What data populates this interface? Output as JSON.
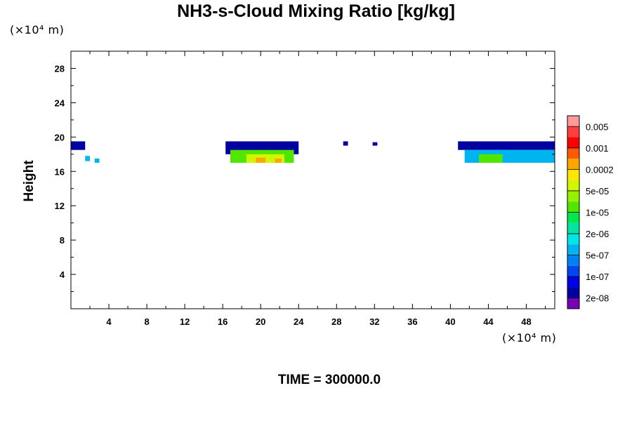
{
  "chart_data": {
    "type": "heatmap",
    "title": "NH3-s-Cloud Mixing Ratio [kg/kg]",
    "ylabel": "Height",
    "xunit": "(×10⁴ m)",
    "yunit": "(×10⁴ m)",
    "footer": "TIME = 300000.0",
    "xlim": [
      0,
      51
    ],
    "ylim": [
      0,
      30
    ],
    "xticks": [
      4,
      8,
      12,
      16,
      20,
      24,
      28,
      32,
      36,
      40,
      44,
      48
    ],
    "yticks": [
      4,
      8,
      12,
      16,
      20,
      24,
      28
    ],
    "colorbar": {
      "labels": [
        "0.005",
        "0.001",
        "0.0002",
        "5e-05",
        "1e-05",
        "2e-06",
        "5e-07",
        "1e-07",
        "2e-08"
      ],
      "colors_top_to_bottom": [
        "#ff9a9a",
        "#ff4040",
        "#ff0000",
        "#ff5a00",
        "#ffa500",
        "#ffe600",
        "#d2f500",
        "#96f000",
        "#50e600",
        "#00e650",
        "#00e6a0",
        "#00e6e6",
        "#00b4f0",
        "#0082f0",
        "#0046f0",
        "#0000e6",
        "#0000a0",
        "#7800b4"
      ]
    },
    "regions": [
      {
        "x": [
          0.0,
          1.5
        ],
        "y": [
          18.5,
          19.5
        ],
        "level": "1e-07"
      },
      {
        "x": [
          1.5,
          2.0
        ],
        "y": [
          17.2,
          17.8
        ],
        "level": "2e-06"
      },
      {
        "x": [
          2.5,
          3.0
        ],
        "y": [
          17.0,
          17.5
        ],
        "level": "2e-06"
      },
      {
        "x": [
          16.3,
          24.0
        ],
        "y": [
          18.0,
          19.5
        ],
        "level": "1e-07"
      },
      {
        "x": [
          16.8,
          23.5
        ],
        "y": [
          17.0,
          18.5
        ],
        "level": "5e-05"
      },
      {
        "x": [
          18.5,
          22.5
        ],
        "y": [
          17.0,
          18.0
        ],
        "level": "0.0002"
      },
      {
        "x": [
          19.5,
          20.5
        ],
        "y": [
          17.0,
          17.6
        ],
        "level": "0.001"
      },
      {
        "x": [
          21.5,
          22.2
        ],
        "y": [
          17.0,
          17.5
        ],
        "level": "0.001"
      },
      {
        "x": [
          28.7,
          29.2
        ],
        "y": [
          19.0,
          19.5
        ],
        "level": "1e-07"
      },
      {
        "x": [
          31.8,
          32.3
        ],
        "y": [
          19.0,
          19.4
        ],
        "level": "1e-07"
      },
      {
        "x": [
          40.8,
          51.0
        ],
        "y": [
          18.5,
          19.5
        ],
        "level": "1e-07"
      },
      {
        "x": [
          41.5,
          51.0
        ],
        "y": [
          17.0,
          18.5
        ],
        "level": "2e-06"
      },
      {
        "x": [
          43.0,
          45.5
        ],
        "y": [
          17.0,
          18.0
        ],
        "level": "5e-05"
      }
    ]
  }
}
